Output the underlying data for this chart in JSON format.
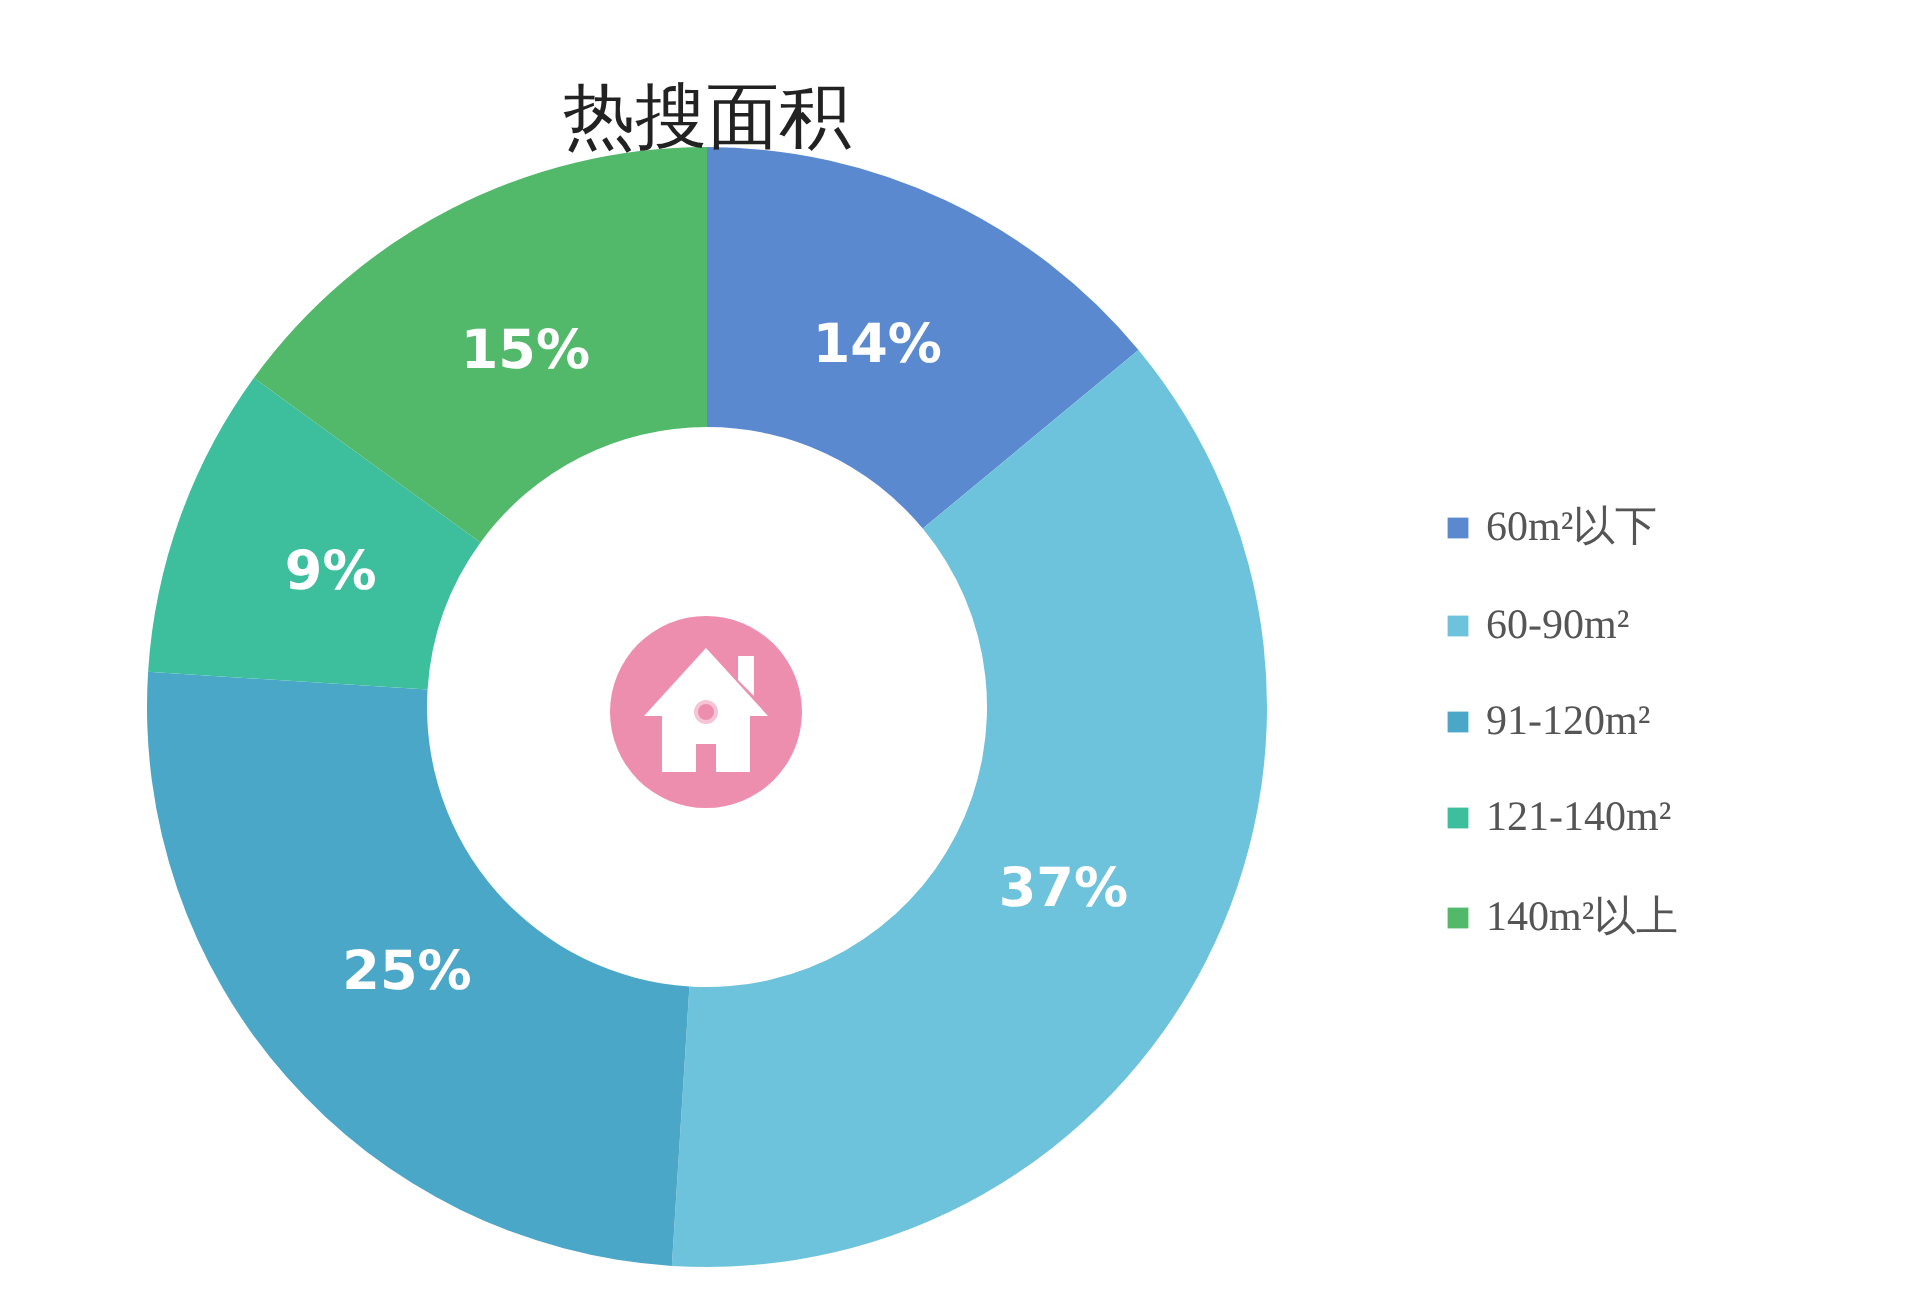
{
  "chart_data": {
    "type": "donut",
    "title": "热搜面积",
    "categories": [
      "60m²以下",
      "60-90m²",
      "91-120m²",
      "121-140m²",
      "140m²以上"
    ],
    "values": [
      14,
      37,
      25,
      9,
      15
    ],
    "colors": [
      "#5a89cf",
      "#6ec3dc",
      "#4aa7c8",
      "#3dbf9e",
      "#52b86a"
    ],
    "value_labels": [
      "14%",
      "37%",
      "25%",
      "9%",
      "15%"
    ],
    "legend": "right"
  }
}
